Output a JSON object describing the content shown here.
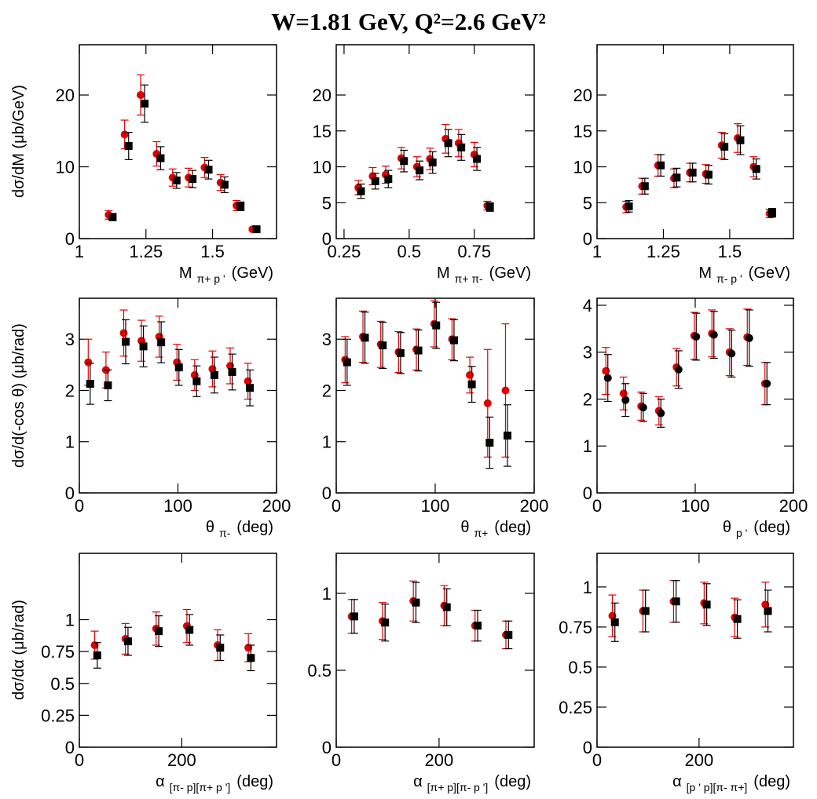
{
  "title": "W=1.81 GeV, Q²=2.6 GeV²",
  "chart_data": [
    {
      "type": "scatter",
      "ylabel": "dσ/dM (μb/GeV)",
      "xlabel": [
        "M",
        "π+ p '",
        "(GeV)"
      ],
      "xlim": [
        1,
        1.74
      ],
      "xticks": [
        1,
        1.25,
        1.5
      ],
      "ylim": [
        0,
        27
      ],
      "yticks": [
        0,
        10,
        20
      ],
      "series": [
        {
          "color": "#e00000",
          "marker": "circle",
          "x": [
            1.11,
            1.17,
            1.23,
            1.29,
            1.35,
            1.41,
            1.47,
            1.53,
            1.59,
            1.65
          ],
          "values": [
            3.3,
            14.5,
            20,
            11.8,
            8.5,
            8.5,
            9.9,
            7.8,
            4.6,
            1.3
          ],
          "errors": [
            0.6,
            2,
            2.8,
            1.7,
            1.2,
            1.3,
            1.4,
            1.1,
            0.7,
            0.2
          ]
        },
        {
          "color": "#000000",
          "marker": "square",
          "x": [
            1.125,
            1.185,
            1.245,
            1.305,
            1.365,
            1.425,
            1.485,
            1.545,
            1.605,
            1.665
          ],
          "values": [
            3,
            12.9,
            18.8,
            11.2,
            8.1,
            8.3,
            9.6,
            7.5,
            4.5,
            1.3
          ],
          "errors": [
            0.5,
            1.9,
            2.6,
            1.6,
            1.1,
            1.2,
            1.3,
            1.1,
            0.6,
            0.2
          ]
        }
      ]
    },
    {
      "type": "scatter",
      "xlabel": [
        "M",
        "π+ π-",
        "(GeV)"
      ],
      "xlim": [
        0.22,
        0.98
      ],
      "xticks": [
        0.25,
        0.5,
        0.75
      ],
      "ylim": [
        0,
        27
      ],
      "yticks": [
        0,
        5,
        10,
        15,
        20
      ],
      "series": [
        {
          "color": "#e00000",
          "marker": "circle",
          "x": [
            0.305,
            0.36,
            0.41,
            0.47,
            0.53,
            0.58,
            0.64,
            0.69,
            0.75,
            0.8
          ],
          "values": [
            7.1,
            8.7,
            8.9,
            11.2,
            10,
            11.1,
            13.9,
            13.3,
            11.7,
            4.6
          ],
          "errors": [
            1,
            1.2,
            1.2,
            1.5,
            1.4,
            1.5,
            2,
            1.9,
            1.7,
            0.6
          ]
        },
        {
          "color": "#000000",
          "marker": "square",
          "x": [
            0.315,
            0.37,
            0.42,
            0.48,
            0.54,
            0.59,
            0.65,
            0.7,
            0.76,
            0.81
          ],
          "values": [
            6.6,
            8,
            8.3,
            10.8,
            9.5,
            10.6,
            13.3,
            12.7,
            11.1,
            4.4
          ],
          "errors": [
            1,
            1.1,
            1.2,
            1.5,
            1.3,
            1.5,
            1.9,
            1.8,
            1.6,
            0.6
          ]
        }
      ]
    },
    {
      "type": "scatter",
      "xlabel": [
        "M",
        "π- p '",
        "(GeV)"
      ],
      "xlim": [
        1,
        1.74
      ],
      "xticks": [
        1,
        1.25,
        1.5
      ],
      "ylim": [
        0,
        27
      ],
      "yticks": [
        0,
        5,
        10,
        15,
        20
      ],
      "series": [
        {
          "color": "#e00000",
          "marker": "circle",
          "x": [
            1.11,
            1.17,
            1.23,
            1.29,
            1.35,
            1.41,
            1.47,
            1.53,
            1.59,
            1.65
          ],
          "values": [
            4.4,
            7.3,
            10.2,
            8.4,
            9.2,
            9,
            13,
            14,
            10,
            3.5
          ],
          "errors": [
            0.8,
            1.1,
            1.5,
            1.3,
            1.3,
            1.3,
            1.8,
            2,
            1.4,
            0.6
          ]
        },
        {
          "color": "#000000",
          "marker": "square",
          "x": [
            1.12,
            1.18,
            1.24,
            1.3,
            1.36,
            1.42,
            1.48,
            1.54,
            1.6,
            1.66
          ],
          "values": [
            4.5,
            7.3,
            10.2,
            8.5,
            9.2,
            8.9,
            12.8,
            13.7,
            9.7,
            3.6
          ],
          "errors": [
            0.8,
            1.1,
            1.5,
            1.3,
            1.3,
            1.3,
            1.8,
            2,
            1.4,
            0.6
          ]
        }
      ]
    },
    {
      "type": "scatter",
      "ylabel": "dσ/d(-cos θ) (μb/rad)",
      "xlabel": [
        "θ",
        "π-",
        "(deg)"
      ],
      "xlim": [
        0,
        200
      ],
      "xticks": [
        0,
        100,
        200
      ],
      "ylim": [
        0,
        3.8
      ],
      "yticks": [
        0,
        1,
        2,
        3
      ],
      "series": [
        {
          "color": "#e00000",
          "marker": "circle",
          "x": [
            9,
            27,
            45,
            63,
            81,
            99,
            117,
            135,
            153,
            171
          ],
          "values": [
            2.55,
            2.4,
            3.12,
            2.97,
            3.05,
            2.55,
            2.3,
            2.42,
            2.48,
            2.18
          ],
          "errors": [
            0.45,
            0.35,
            0.45,
            0.4,
            0.4,
            0.35,
            0.3,
            0.35,
            0.35,
            0.35
          ]
        },
        {
          "color": "#000000",
          "marker": "square",
          "x": [
            11,
            29,
            47,
            65,
            83,
            101,
            119,
            137,
            155,
            173
          ],
          "values": [
            2.13,
            2.1,
            2.95,
            2.86,
            2.94,
            2.45,
            2.18,
            2.3,
            2.36,
            2.05
          ],
          "errors": [
            0.4,
            0.3,
            0.43,
            0.4,
            0.4,
            0.35,
            0.3,
            0.35,
            0.35,
            0.35
          ]
        }
      ]
    },
    {
      "type": "scatter",
      "xlabel": [
        "θ",
        "π+",
        "(deg)"
      ],
      "xlim": [
        0,
        200
      ],
      "xticks": [
        0,
        100,
        200
      ],
      "ylim": [
        0,
        3.8
      ],
      "yticks": [
        0,
        1,
        2,
        3
      ],
      "series": [
        {
          "color": "#e00000",
          "marker": "circle",
          "x": [
            9,
            27,
            45,
            63,
            81,
            99,
            117,
            135,
            153,
            171
          ],
          "values": [
            2.6,
            3.05,
            2.9,
            2.75,
            2.8,
            3.3,
            3,
            2.3,
            1.75,
            2
          ],
          "errors": [
            0.45,
            0.5,
            0.45,
            0.4,
            0.4,
            0.45,
            0.4,
            0.35,
            1.05,
            1.3
          ]
        },
        {
          "color": "#000000",
          "marker": "square",
          "x": [
            11,
            29,
            47,
            65,
            83,
            101,
            119,
            137,
            155,
            173
          ],
          "values": [
            2.55,
            3.03,
            2.88,
            2.73,
            2.78,
            3.27,
            2.98,
            2.12,
            0.98,
            1.12
          ],
          "errors": [
            0.45,
            0.5,
            0.45,
            0.4,
            0.4,
            0.45,
            0.4,
            0.35,
            0.5,
            0.6
          ]
        }
      ]
    },
    {
      "type": "scatter",
      "xlabel": [
        "θ",
        "p '",
        "(deg)"
      ],
      "xlim": [
        0,
        200
      ],
      "xticks": [
        0,
        100,
        200
      ],
      "ylim": [
        0,
        4.15
      ],
      "yticks": [
        0,
        1,
        2,
        3,
        4
      ],
      "series": [
        {
          "color": "#e00000",
          "marker": "circle",
          "x": [
            9,
            27,
            45,
            63,
            81,
            99,
            117,
            135,
            153,
            171
          ],
          "values": [
            2.6,
            2.12,
            1.85,
            1.75,
            2.68,
            3.35,
            3.4,
            3,
            3.32,
            2.33
          ],
          "errors": [
            0.5,
            0.35,
            0.3,
            0.3,
            0.4,
            0.5,
            0.5,
            0.5,
            0.6,
            0.45
          ]
        },
        {
          "color": "#000000",
          "marker": "circle",
          "x": [
            11,
            29,
            47,
            65,
            83,
            101,
            119,
            137,
            155,
            173
          ],
          "values": [
            2.45,
            1.98,
            1.82,
            1.7,
            2.63,
            3.33,
            3.37,
            2.97,
            3.3,
            2.33
          ],
          "errors": [
            0.5,
            0.35,
            0.3,
            0.3,
            0.4,
            0.5,
            0.5,
            0.5,
            0.6,
            0.45
          ]
        }
      ]
    },
    {
      "type": "scatter",
      "ylabel": "dσ/dα (μb/rad)",
      "xlabel": [
        "α",
        "[π- p][π+ p ']",
        "(deg)"
      ],
      "xlim": [
        0,
        385
      ],
      "xticks": [
        0,
        200
      ],
      "ylim": [
        0,
        1.52
      ],
      "yticks": [
        0,
        0.25,
        0.5,
        0.75,
        1
      ],
      "series": [
        {
          "color": "#e00000",
          "marker": "circle",
          "x": [
            30,
            90,
            150,
            210,
            270,
            330
          ],
          "values": [
            0.8,
            0.85,
            0.93,
            0.95,
            0.8,
            0.78
          ],
          "errors": [
            0.11,
            0.12,
            0.13,
            0.13,
            0.12,
            0.11
          ]
        },
        {
          "color": "#000000",
          "marker": "square",
          "x": [
            35,
            95,
            155,
            215,
            275,
            335
          ],
          "values": [
            0.72,
            0.83,
            0.91,
            0.92,
            0.78,
            0.7
          ],
          "errors": [
            0.1,
            0.11,
            0.12,
            0.12,
            0.1,
            0.1
          ]
        }
      ]
    },
    {
      "type": "scatter",
      "xlabel": [
        "α",
        "[π+ p][π- p ']",
        "(deg)"
      ],
      "xlim": [
        0,
        385
      ],
      "xticks": [
        0,
        200
      ],
      "ylim": [
        0,
        1.26
      ],
      "yticks": [
        0,
        0.5,
        1
      ],
      "series": [
        {
          "color": "#e00000",
          "marker": "circle",
          "x": [
            30,
            90,
            150,
            210,
            270,
            330
          ],
          "values": [
            0.85,
            0.82,
            0.95,
            0.92,
            0.79,
            0.73
          ],
          "errors": [
            0.11,
            0.12,
            0.13,
            0.13,
            0.1,
            0.09
          ]
        },
        {
          "color": "#000000",
          "marker": "square",
          "x": [
            35,
            95,
            155,
            215,
            275,
            335
          ],
          "values": [
            0.85,
            0.81,
            0.94,
            0.91,
            0.79,
            0.73
          ],
          "errors": [
            0.11,
            0.12,
            0.13,
            0.12,
            0.1,
            0.09
          ]
        }
      ]
    },
    {
      "type": "scatter",
      "xlabel": [
        "α",
        "[p ' p][π- π+]",
        "(deg)"
      ],
      "xlim": [
        0,
        385
      ],
      "xticks": [
        0,
        200
      ],
      "ylim": [
        0,
        1.21
      ],
      "yticks": [
        0,
        0.25,
        0.5,
        0.75,
        1
      ],
      "series": [
        {
          "color": "#e00000",
          "marker": "circle",
          "x": [
            30,
            90,
            150,
            210,
            270,
            330
          ],
          "values": [
            0.82,
            0.85,
            0.91,
            0.9,
            0.81,
            0.89
          ],
          "errors": [
            0.13,
            0.13,
            0.13,
            0.13,
            0.12,
            0.14
          ]
        },
        {
          "color": "#000000",
          "marker": "square",
          "x": [
            35,
            95,
            155,
            215,
            275,
            335
          ],
          "values": [
            0.78,
            0.85,
            0.91,
            0.89,
            0.8,
            0.85
          ],
          "errors": [
            0.12,
            0.13,
            0.13,
            0.13,
            0.12,
            0.13
          ]
        }
      ]
    }
  ]
}
